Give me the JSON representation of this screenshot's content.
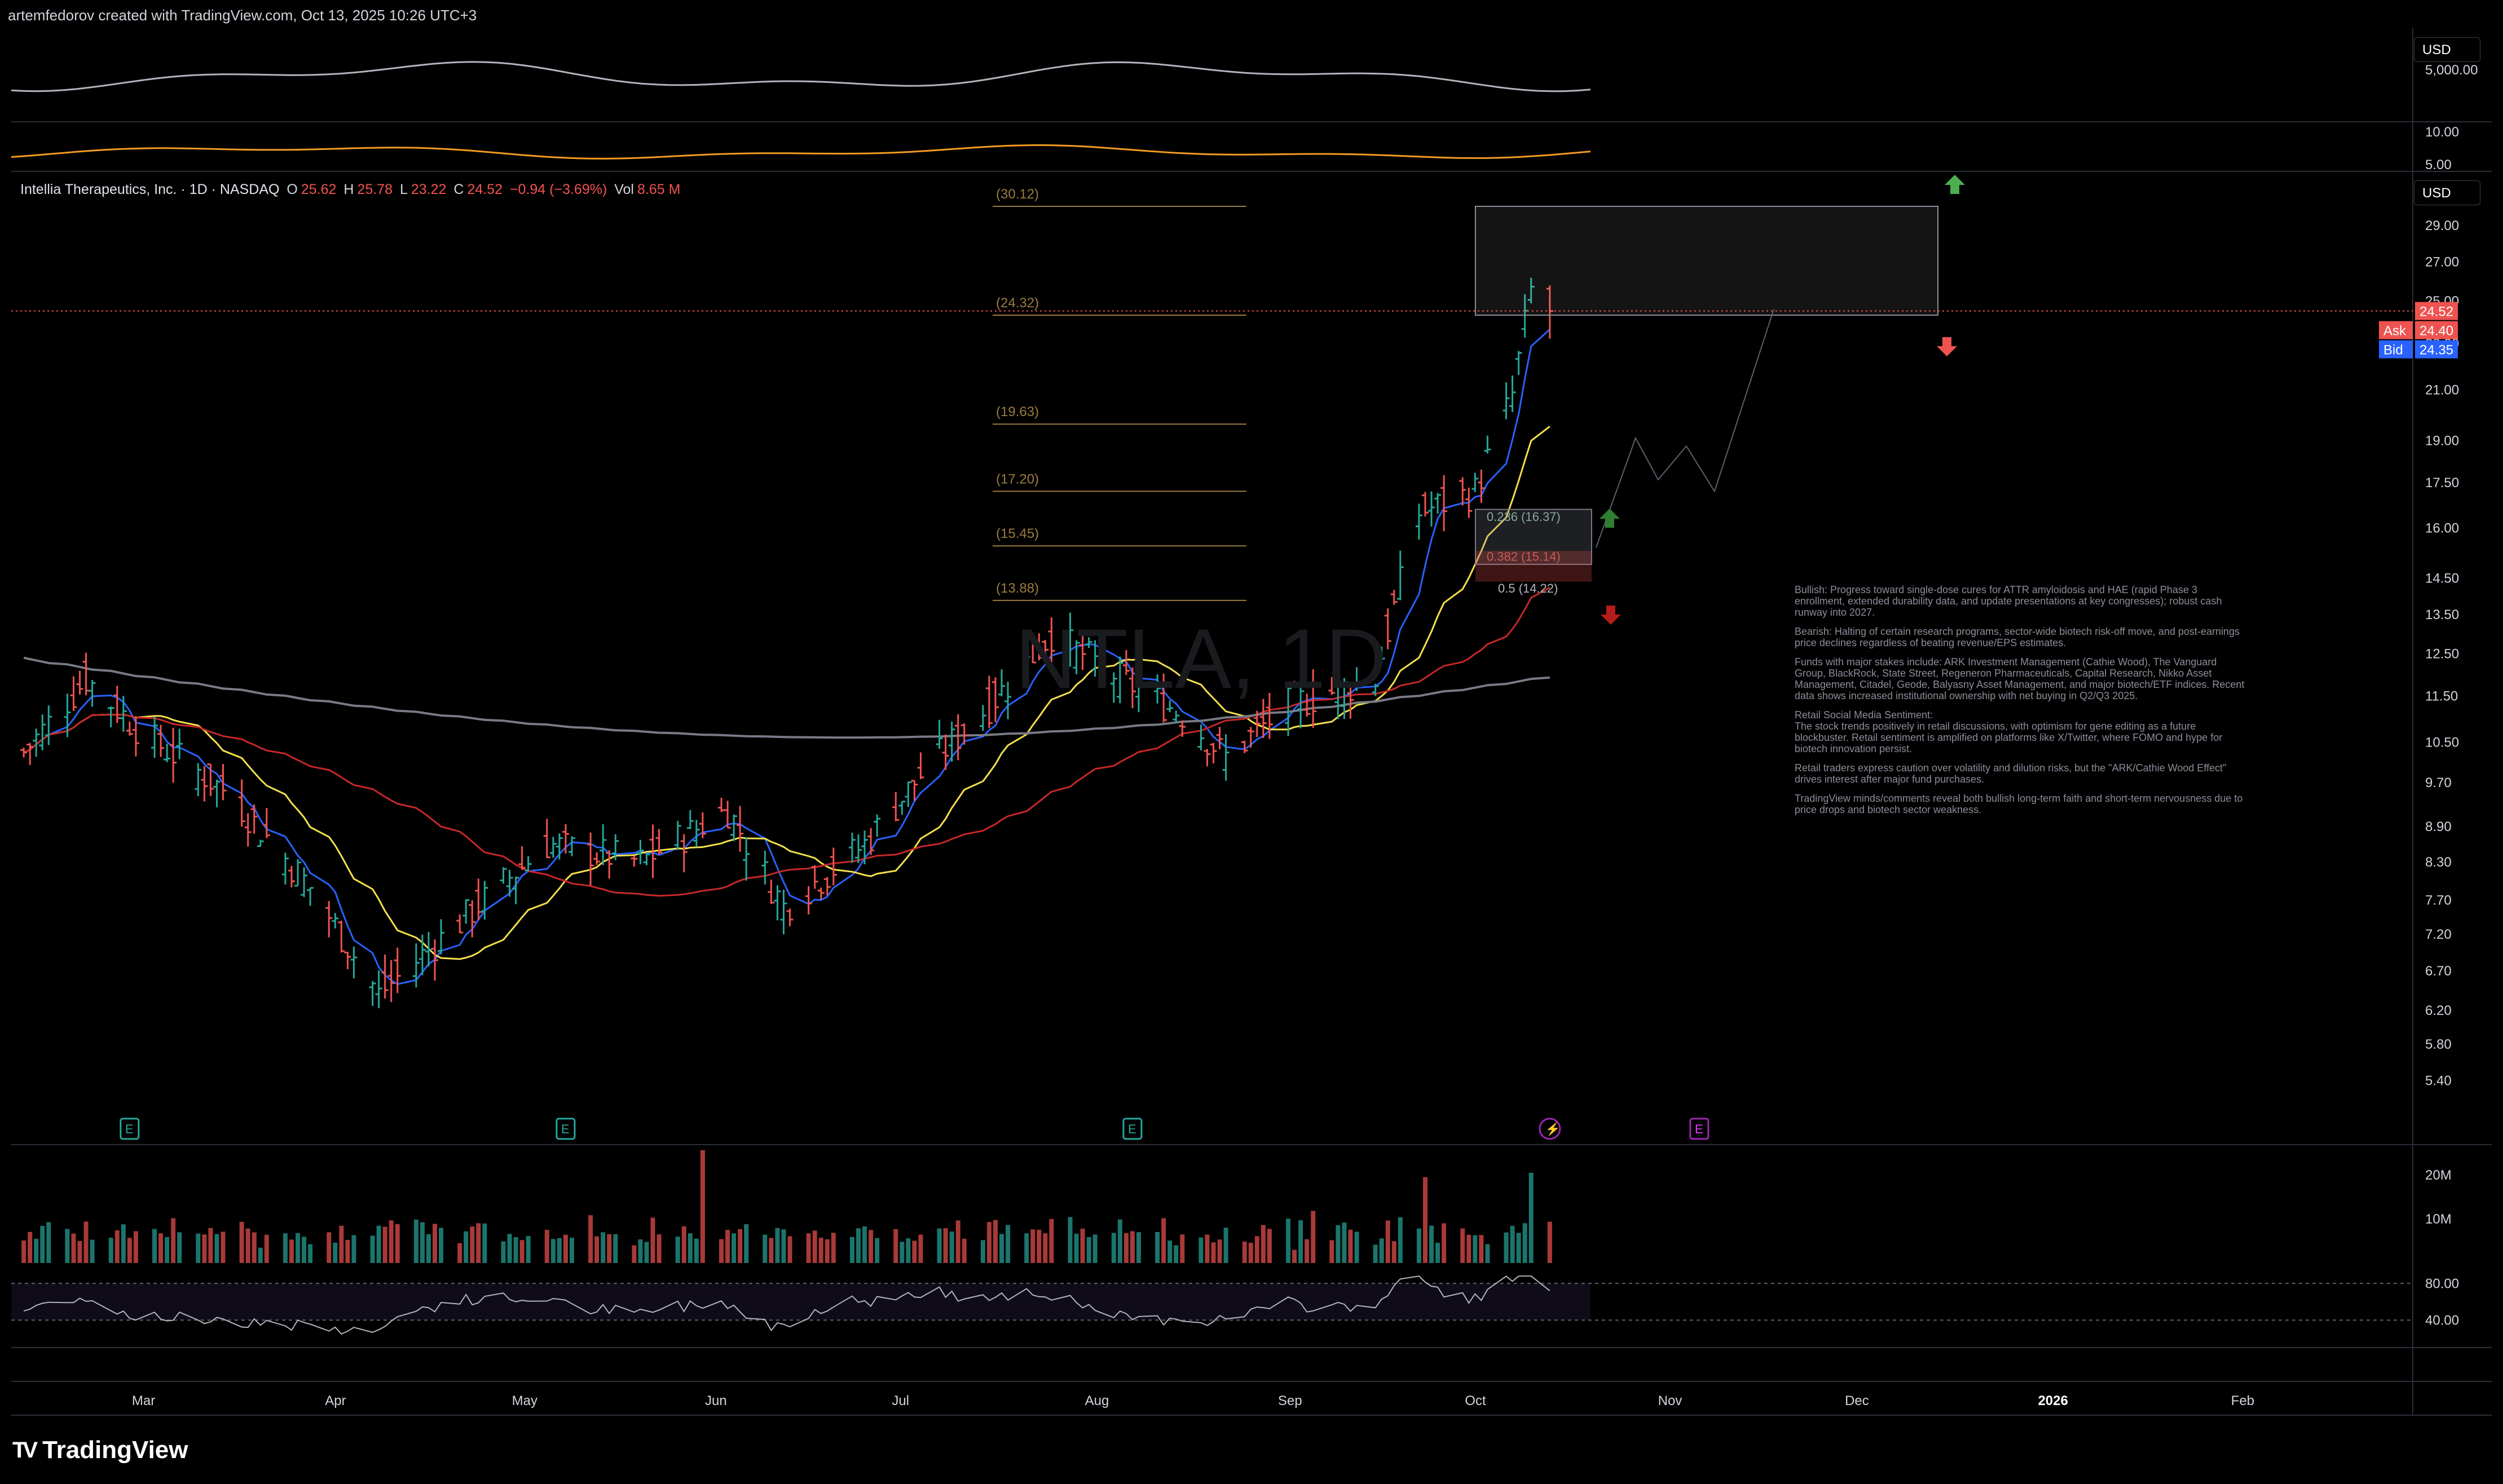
{
  "header": {
    "credit": "artemfedorov created with TradingView.com, Oct 13, 2025 10:26 UTC+3"
  },
  "legend": {
    "symbol": "Intellia Therapeutics, Inc. · 1D · NASDAQ",
    "o_label": "O",
    "o_value": "25.62",
    "h_label": "H",
    "h_value": "25.78",
    "l_label": "L",
    "l_value": "23.22",
    "c_label": "C",
    "c_value": "24.52",
    "change": "−0.94 (−3.69%)",
    "vol_label": "Vol",
    "vol_value": "8.65 M"
  },
  "watermark": "NTLA, 1D",
  "currency": "USD",
  "price_scale": {
    "labels": [
      "29.00",
      "27.00",
      "25.00",
      "23.00",
      "21.00",
      "19.00",
      "17.50",
      "16.00",
      "14.50",
      "13.50",
      "12.50",
      "11.50",
      "10.50",
      "9.70",
      "8.90",
      "8.30",
      "7.70",
      "7.20",
      "6.70",
      "6.20",
      "5.80",
      "5.40"
    ],
    "last_price": "24.52",
    "ask_label": "Ask",
    "ask_value": "24.40",
    "bid_label": "Bid",
    "bid_value": "24.35"
  },
  "compare_scale": {
    "top_labels": [
      "5,000.00"
    ],
    "bottom_labels": [
      "10.00",
      "5.00"
    ]
  },
  "volume_scale": [
    "20M",
    "10M"
  ],
  "rsi_scale": [
    "80.00",
    "40.00"
  ],
  "time_axis": [
    "Mar",
    "Apr",
    "May",
    "Jun",
    "Jul",
    "Aug",
    "Sep",
    "Oct",
    "Nov",
    "Dec",
    "2026",
    "Feb"
  ],
  "fib_levels": [
    {
      "label": "(30.12)"
    },
    {
      "label": "(24.32)"
    },
    {
      "label": "(19.63)"
    },
    {
      "label": "(17.20)"
    },
    {
      "label": "(15.45)"
    },
    {
      "label": "(13.88)"
    }
  ],
  "fib_box_levels": [
    {
      "label": "0.236 (16.37)"
    },
    {
      "label": "0.382 (15.14)"
    },
    {
      "label": "0.5 (14.22)"
    }
  ],
  "event_markers": [
    "E",
    "E",
    "E",
    "⚡",
    "E"
  ],
  "notes": [
    "Bullish: Progress toward single-dose cures for ATTR amyloidosis and HAE (rapid Phase 3 enrollment, extended durability data, and update presentations at key congresses); robust cash runway into 2027.",
    "Bearish: Halting of certain research programs, sector-wide biotech risk-off move, and post-earnings price declines regardless of beating revenue/EPS estimates.",
    "Funds with major stakes include: ARK Investment Management (Cathie Wood), The Vanguard Group, BlackRock, State Street, Regeneron Pharmaceuticals, Capital Research, Nikko Asset Management, Citadel, Geode, Balyasny Asset Management, and major biotech/ETF indices. Recent data shows increased institutional ownership with net buying in Q2/Q3 2025.",
    "Retail Social Media Sentiment:\nThe stock trends positively in retail discussions, with optimism for gene editing as a future blockbuster. Retail sentiment is amplified on platforms like X/Twitter, where FOMO and hype for biotech innovation persist.",
    "Retail traders express caution over volatility and dilution risks, but the \"ARK/Cathie Wood Effect\" drives interest after major fund purchases.",
    "TradingView minds/comments reveal both bullish long-term faith and short-term nervousness due to price drops and biotech sector weakness."
  ],
  "brand": {
    "name": "TradingView"
  },
  "colors": {
    "up": "#26a69a",
    "down": "#ef5350",
    "ma_fast": "#2962ff",
    "ma_mid": "#f5e14c",
    "ma_slow": "#c62828",
    "ma_long": "#787b86",
    "compare1": "#b2b5be",
    "compare2": "#f59a23"
  },
  "chart_data": {
    "type": "candlestick",
    "symbol": "NTLA",
    "interval": "1D",
    "x_range": [
      "2025-02-08",
      "2026-02-28"
    ],
    "y_range": [
      5.0,
      31.0
    ],
    "y_scale": "log",
    "monthly_price_path": [
      {
        "date": "2025-02-10",
        "close": 10.3
      },
      {
        "date": "2025-02-20",
        "close": 11.9
      },
      {
        "date": "2025-03-01",
        "close": 10.7
      },
      {
        "date": "2025-03-15",
        "close": 9.5
      },
      {
        "date": "2025-03-28",
        "close": 7.9
      },
      {
        "date": "2025-04-08",
        "close": 6.4
      },
      {
        "date": "2025-04-20",
        "close": 7.3
      },
      {
        "date": "2025-05-05",
        "close": 8.6
      },
      {
        "date": "2025-05-20",
        "close": 8.3
      },
      {
        "date": "2025-06-03",
        "close": 9.2
      },
      {
        "date": "2025-06-12",
        "close": 7.6
      },
      {
        "date": "2025-06-25",
        "close": 8.6
      },
      {
        "date": "2025-07-05",
        "close": 10.0
      },
      {
        "date": "2025-07-15",
        "close": 11.3
      },
      {
        "date": "2025-07-25",
        "close": 13.0
      },
      {
        "date": "2025-08-05",
        "close": 11.9
      },
      {
        "date": "2025-08-15",
        "close": 11.1
      },
      {
        "date": "2025-08-22",
        "close": 10.2
      },
      {
        "date": "2025-09-01",
        "close": 11.3
      },
      {
        "date": "2025-09-15",
        "close": 11.9
      },
      {
        "date": "2025-09-22",
        "close": 16.5
      },
      {
        "date": "2025-10-01",
        "close": 17.2
      },
      {
        "date": "2025-10-07",
        "close": 20.8
      },
      {
        "date": "2025-10-10",
        "close": 25.5
      },
      {
        "date": "2025-10-13",
        "close": 24.52
      }
    ],
    "last_bar": {
      "open": 25.62,
      "high": 25.78,
      "low": 23.22,
      "close": 24.52,
      "volume": "8.65M"
    },
    "volume_peaks_millions": [
      {
        "date": "2025-05-30",
        "value": 25
      },
      {
        "date": "2025-09-23",
        "value": 19
      },
      {
        "date": "2025-10-10",
        "value": 20
      }
    ],
    "rsi_levels": [
      80,
      40
    ]
  }
}
